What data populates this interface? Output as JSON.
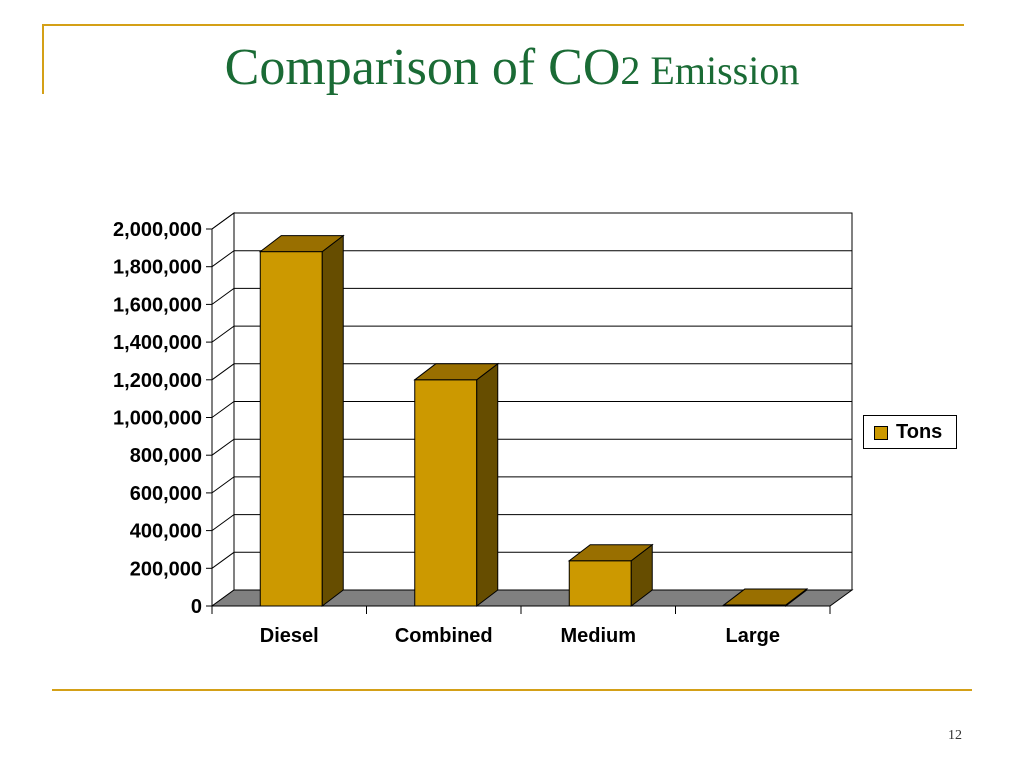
{
  "slide": {
    "title_main": "Comparison of CO",
    "title_sub": "2 Emission",
    "page_number": "12"
  },
  "colors": {
    "accent": "#d4a017",
    "title": "#1a6b35",
    "bar_front": "#cc9900",
    "bar_side": "#664d00",
    "bar_top": "#996f00",
    "floor": "#808080"
  },
  "chart_data": {
    "type": "bar",
    "categories": [
      "Diesel",
      "Combined",
      "Medium",
      "Large"
    ],
    "series": [
      {
        "name": "Tons",
        "values": [
          1880000,
          1200000,
          240000,
          5000
        ]
      }
    ],
    "ylim": [
      0,
      2000000
    ],
    "yticks": [
      "0",
      "200,000",
      "400,000",
      "600,000",
      "800,000",
      "1,000,000",
      "1,200,000",
      "1,400,000",
      "1,600,000",
      "1,800,000",
      "2,000,000"
    ],
    "title": "",
    "xlabel": "",
    "ylabel": "",
    "grid": true,
    "legend": "right",
    "style": "3d-column"
  }
}
